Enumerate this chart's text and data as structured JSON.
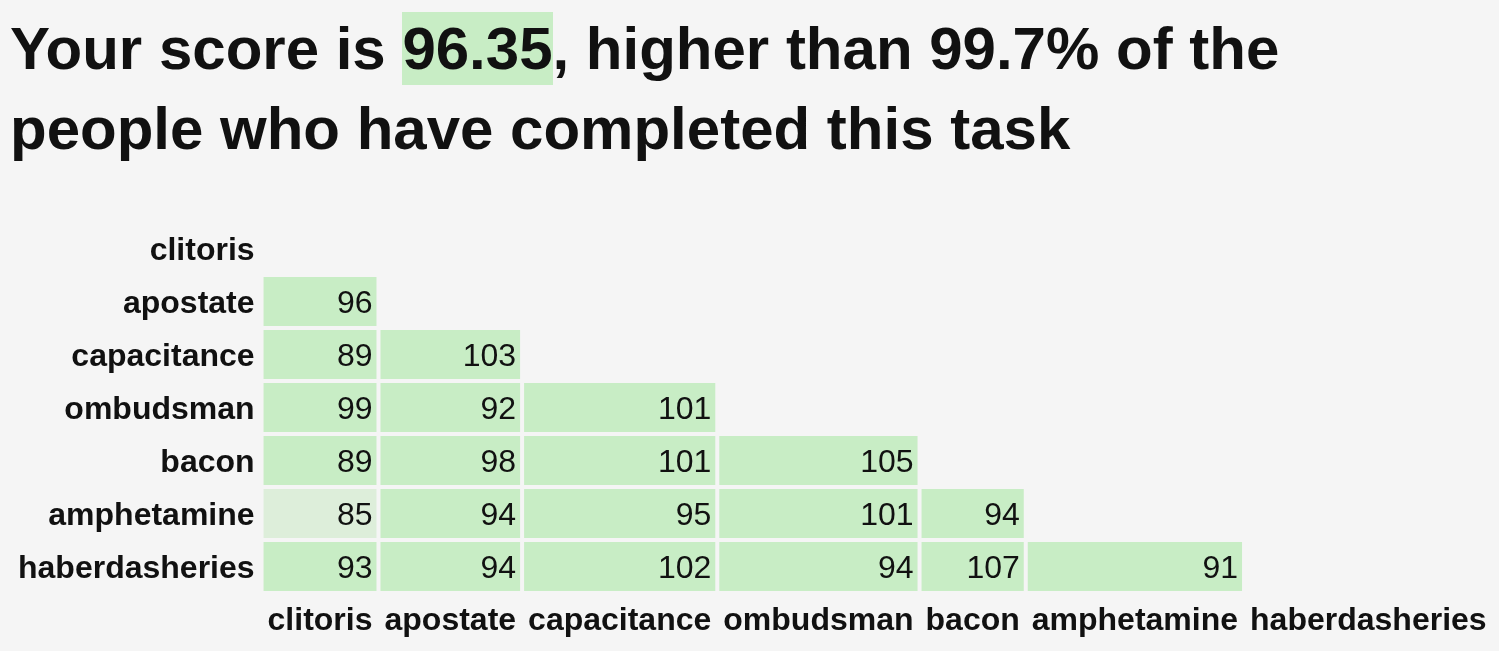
{
  "chart_data": {
    "type": "heatmap",
    "title": "Your score is 96.35, higher than 99.7% of the people who have completed this task",
    "categories": [
      "clitoris",
      "apostate",
      "capacitance",
      "ombudsman",
      "bacon",
      "amphetamine",
      "haberdasheries"
    ],
    "y_categories": [
      "clitoris",
      "apostate",
      "capacitance",
      "ombudsman",
      "bacon",
      "amphetamine",
      "haberdasheries"
    ],
    "cells": [
      [
        null,
        null,
        null,
        null,
        null,
        null,
        null
      ],
      [
        96,
        null,
        null,
        null,
        null,
        null,
        null
      ],
      [
        89,
        103,
        null,
        null,
        null,
        null,
        null
      ],
      [
        99,
        92,
        101,
        null,
        null,
        null,
        null
      ],
      [
        89,
        98,
        101,
        105,
        null,
        null,
        null
      ],
      [
        85,
        94,
        95,
        101,
        94,
        null,
        null
      ],
      [
        93,
        94,
        102,
        94,
        107,
        91,
        null
      ]
    ],
    "colors": [
      [
        null,
        null,
        null,
        null,
        null,
        null,
        null
      ],
      [
        "#c8edc5",
        null,
        null,
        null,
        null,
        null,
        null
      ],
      [
        "#c8edc5",
        "#c8edc5",
        null,
        null,
        null,
        null,
        null
      ],
      [
        "#c8edc5",
        "#c8edc5",
        "#c8edc5",
        null,
        null,
        null,
        null
      ],
      [
        "#c8edc5",
        "#c8edc5",
        "#c8edc5",
        "#c8edc5",
        null,
        null,
        null
      ],
      [
        "#ddeeda",
        "#c8edc5",
        "#c8edc5",
        "#c8edc5",
        "#c8edc5",
        null,
        null
      ],
      [
        "#c8edc5",
        "#c8edc5",
        "#c8edc5",
        "#c8edc5",
        "#c8edc5",
        "#c8edc5",
        null
      ]
    ],
    "data_labels": true
  }
}
